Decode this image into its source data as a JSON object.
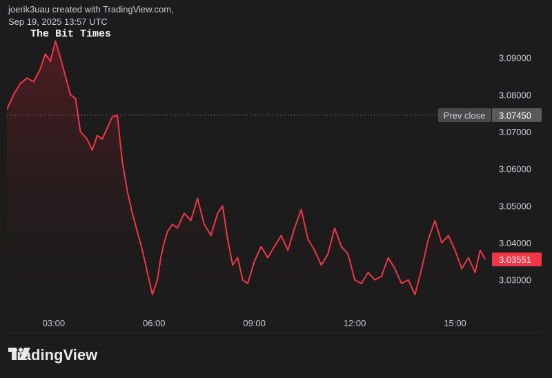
{
  "header": {
    "line1": "joerik3uau created with TradingView.com,",
    "line2": "Sep 19, 2025 13:57 UTC"
  },
  "watermark": "The Bit Times",
  "brand": {
    "name": "TradingView",
    "logo_icon": "tradingview-logo-icon"
  },
  "colors": {
    "line": "#f23645",
    "area_top": "#5a1d22",
    "background": "#1c1c1c"
  },
  "chart_data": {
    "type": "area",
    "xlabels": [
      "03:00",
      "06:00",
      "09:00",
      "12:00",
      "15:00"
    ],
    "xticks": [
      3,
      6,
      9,
      12,
      15
    ],
    "xlim": [
      1.6,
      16.0
    ],
    "ylim": [
      3.0225,
      3.0985
    ],
    "yticks": [
      3.03,
      3.04,
      3.05,
      3.06,
      3.07,
      3.08,
      3.09
    ],
    "ytick_labels": [
      "3.03000",
      "3.04000",
      "3.05000",
      "3.06000",
      "3.07000",
      "3.08000",
      "3.09000"
    ],
    "prev_close": {
      "label": "Prev close",
      "value": 3.0745,
      "value_label": "3.07450"
    },
    "last_price": {
      "value": 3.03551,
      "value_label": "3.03551"
    },
    "x": [
      1.6,
      1.8,
      2.0,
      2.2,
      2.4,
      2.6,
      2.75,
      2.9,
      3.05,
      3.2,
      3.35,
      3.5,
      3.65,
      3.8,
      4.0,
      4.15,
      4.3,
      4.45,
      4.6,
      4.75,
      4.9,
      5.05,
      5.2,
      5.35,
      5.5,
      5.65,
      5.8,
      5.95,
      6.1,
      6.2,
      6.3,
      6.4,
      6.55,
      6.7,
      6.9,
      7.1,
      7.3,
      7.5,
      7.7,
      7.9,
      8.05,
      8.2,
      8.35,
      8.5,
      8.65,
      8.8,
      9.0,
      9.2,
      9.4,
      9.6,
      9.8,
      10.0,
      10.2,
      10.4,
      10.6,
      10.8,
      11.0,
      11.2,
      11.4,
      11.6,
      11.8,
      12.0,
      12.2,
      12.4,
      12.6,
      12.8,
      13.0,
      13.2,
      13.4,
      13.6,
      13.8,
      14.0,
      14.2,
      14.4,
      14.6,
      14.8,
      15.0,
      15.2,
      15.4,
      15.6,
      15.75,
      15.9
    ],
    "y": [
      3.076,
      3.08,
      3.083,
      3.0845,
      3.0835,
      3.087,
      3.091,
      3.089,
      3.0945,
      3.09,
      3.085,
      3.08,
      3.079,
      3.07,
      3.068,
      3.065,
      3.069,
      3.068,
      3.071,
      3.074,
      3.0745,
      3.062,
      3.054,
      3.048,
      3.043,
      3.038,
      3.032,
      3.026,
      3.03,
      3.036,
      3.04,
      3.043,
      3.045,
      3.044,
      3.048,
      3.046,
      3.052,
      3.045,
      3.042,
      3.048,
      3.05,
      3.041,
      3.034,
      3.036,
      3.03,
      3.029,
      3.035,
      3.039,
      3.036,
      3.039,
      3.042,
      3.038,
      3.044,
      3.049,
      3.041,
      3.038,
      3.034,
      3.037,
      3.044,
      3.039,
      3.037,
      3.03,
      3.029,
      3.032,
      3.03,
      3.031,
      3.036,
      3.033,
      3.029,
      3.03,
      3.026,
      3.033,
      3.041,
      3.046,
      3.04,
      3.042,
      3.038,
      3.033,
      3.036,
      3.032,
      3.038,
      3.0355
    ]
  }
}
